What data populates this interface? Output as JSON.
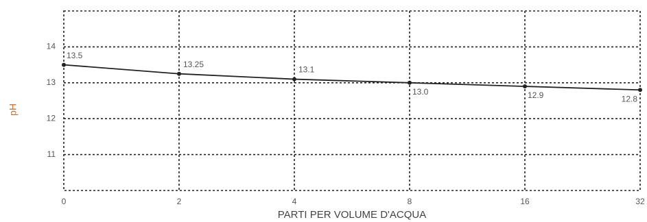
{
  "chart_data": {
    "type": "line",
    "x_label": "PARTI PER VOLUME D'ACQUA",
    "y_label": "pH",
    "categories": [
      "0",
      "2",
      "4",
      "8",
      "16",
      "32"
    ],
    "series": [
      {
        "name": "pH",
        "color": "#222222",
        "values": [
          13.5,
          13.25,
          13.1,
          13.0,
          12.9,
          12.8
        ],
        "value_labels": [
          "13.5",
          "13.25",
          "13.1",
          "13.0",
          "12.9",
          "12.8"
        ]
      }
    ],
    "ylim": [
      10,
      15
    ],
    "yticks": [
      11,
      12,
      13,
      14
    ],
    "grid": true
  }
}
